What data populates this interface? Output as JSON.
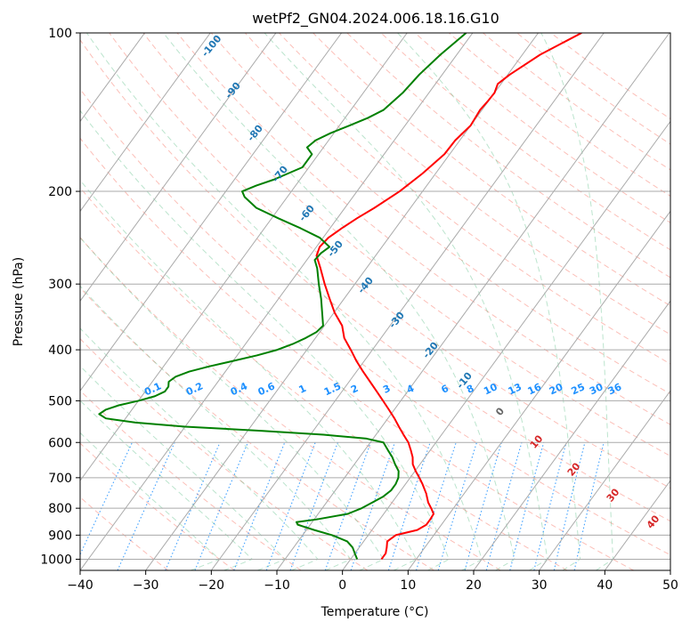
{
  "chart_data": {
    "type": "line",
    "title": "wetPf2_GN04.2024.006.18.16.G10",
    "xlabel": "Temperature (°C)",
    "ylabel": "Pressure (hPa)",
    "xlim": [
      -40,
      50
    ],
    "ylim": [
      1050,
      100
    ],
    "y_scale": "log",
    "x_ticks": [
      -40,
      -30,
      -20,
      -10,
      0,
      10,
      20,
      30,
      40,
      50
    ],
    "y_ticks": [
      100,
      200,
      300,
      400,
      500,
      600,
      700,
      800,
      900,
      1000
    ],
    "grid": true,
    "series": [
      {
        "color": "#ff0000",
        "pressure": [
          1000,
          975,
          950,
          925,
          900,
          880,
          860,
          840,
          820,
          800,
          780,
          750,
          720,
          700,
          680,
          660,
          640,
          620,
          600,
          580,
          560,
          540,
          520,
          500,
          480,
          460,
          440,
          420,
          400,
          380,
          360,
          340,
          320,
          300,
          280,
          265,
          255,
          245,
          235,
          225,
          215,
          200,
          185,
          170,
          160,
          150,
          140,
          135,
          130,
          125,
          120,
          110,
          100
        ],
        "values": [
          4.7,
          4.7,
          4.2,
          3.6,
          4.2,
          6.9,
          7.7,
          7.7,
          7.6,
          6.6,
          5.5,
          4.2,
          2.6,
          1.4,
          0.1,
          -1.1,
          -1.9,
          -3.0,
          -4.2,
          -5.8,
          -7.4,
          -9.0,
          -10.8,
          -12.7,
          -14.7,
          -16.8,
          -19.0,
          -21.2,
          -23.3,
          -25.6,
          -27.3,
          -29.9,
          -32.2,
          -34.6,
          -37.0,
          -39.0,
          -39.5,
          -39.2,
          -38.2,
          -37.0,
          -35.5,
          -33.5,
          -32.0,
          -30.8,
          -30.7,
          -30.0,
          -30.3,
          -30.1,
          -30.0,
          -30.5,
          -29.7,
          -27.3,
          -23.4
        ]
      },
      {
        "color": "#008000",
        "pressure": [
          1000,
          975,
          950,
          925,
          900,
          880,
          860,
          850,
          840,
          820,
          800,
          780,
          760,
          740,
          720,
          700,
          680,
          660,
          640,
          620,
          600,
          590,
          580,
          570,
          560,
          550,
          540,
          530,
          520,
          510,
          500,
          490,
          480,
          470,
          460,
          450,
          440,
          430,
          420,
          410,
          400,
          390,
          380,
          370,
          360,
          340,
          320,
          300,
          280,
          270,
          262,
          255,
          245,
          235,
          225,
          215,
          205,
          200,
          195,
          190,
          180,
          170,
          165,
          160,
          155,
          150,
          145,
          140,
          130,
          120,
          110,
          100
        ],
        "values": [
          1.0,
          0.0,
          -1.0,
          -2.5,
          -5.5,
          -8.8,
          -11.9,
          -12.4,
          -9.6,
          -5.5,
          -4.0,
          -3.0,
          -2.0,
          -1.5,
          -1.5,
          -1.8,
          -2.5,
          -3.8,
          -5.0,
          -6.5,
          -8.0,
          -11.0,
          -18.0,
          -28.0,
          -40.0,
          -48.0,
          -53.0,
          -54.5,
          -54.0,
          -52.5,
          -50.0,
          -48.0,
          -47.0,
          -47.0,
          -47.5,
          -47.0,
          -45.5,
          -43.0,
          -40.0,
          -37.0,
          -34.5,
          -32.8,
          -31.5,
          -30.5,
          -30.2,
          -31.8,
          -33.5,
          -35.5,
          -37.5,
          -38.8,
          -38.6,
          -38.0,
          -40.5,
          -44.5,
          -49.0,
          -53.5,
          -56.5,
          -57.5,
          -56.0,
          -54.0,
          -51.0,
          -51.0,
          -52.5,
          -52.0,
          -50.5,
          -48.5,
          -46.5,
          -45.0,
          -44.0,
          -43.5,
          -42.5,
          -41.0
        ]
      }
    ],
    "mixing_ratio_labels": [
      "0.1",
      "0.2",
      "0.4",
      "0.6",
      "1",
      "1.5",
      "2",
      "3",
      "4",
      "6",
      "8",
      "10",
      "13",
      "16",
      "20",
      "25",
      "30",
      "36"
    ],
    "mixing_ratio_values": [
      0.1,
      0.2,
      0.4,
      0.6,
      1,
      1.5,
      2,
      3,
      4,
      6,
      8,
      10,
      13,
      16,
      20,
      25,
      30,
      36
    ],
    "moist_adiabat_labels": [
      "-100",
      "-90",
      "-80",
      "-70",
      "-60",
      "-50",
      "-40",
      "-30",
      "-20",
      "-10"
    ],
    "moist_adiabat_values": [
      -100,
      -90,
      -80,
      -70,
      -60,
      -50,
      -40,
      -30,
      -20,
      -10
    ],
    "dry_adiabat_labels": [
      "0",
      "10",
      "20",
      "30",
      "40"
    ],
    "dry_adiabat_values": [
      0,
      10,
      20,
      30,
      40
    ],
    "colors": {
      "temperature": "#ff0000",
      "dewpoint": "#008000",
      "isotherm": "#aaaaaa",
      "isobar": "#aaaaaa",
      "dry_adiabat": "#fa8072",
      "moist_adiabat": "#3cb371",
      "mixing_ratio": "#1e90ff",
      "moist_label": "#1f77b4",
      "dry_label": "#d62728"
    }
  }
}
